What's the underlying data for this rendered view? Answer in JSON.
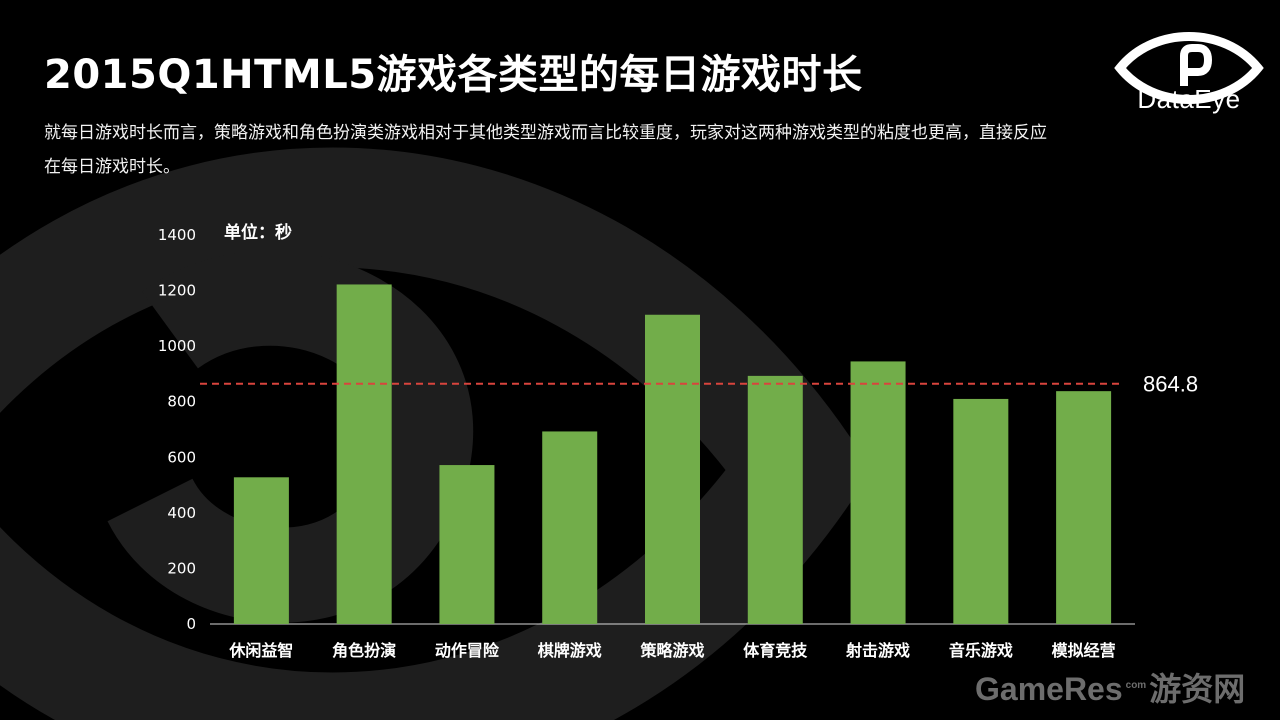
{
  "header": {
    "title": "2015Q1HTML5游戏各类型的每日游戏时长",
    "description": "就每日游戏时长而言，策略游戏和角色扮演类游戏相对于其他类型游戏而言比较重度，玩家对这两种游戏类型的粘度也更高，直接反应在每日游戏时长。"
  },
  "logo": {
    "text": "DataEye"
  },
  "watermark": {
    "main": "GameRes",
    "small": "com",
    "cn": "游资网"
  },
  "chart_data": {
    "type": "bar",
    "title": "",
    "xlabel": "",
    "ylabel": "",
    "unit_label": "单位：秒",
    "categories": [
      "休闲益智",
      "角色扮演",
      "动作冒险",
      "棋牌游戏",
      "策略游戏",
      "体育竞技",
      "射击游戏",
      "音乐游戏",
      "模拟经营"
    ],
    "values": [
      528,
      1222,
      572,
      693,
      1113,
      893,
      945,
      810,
      838
    ],
    "ylim": [
      0,
      1400
    ],
    "yticks": [
      0,
      200,
      400,
      600,
      800,
      1000,
      1200,
      1400
    ],
    "average": {
      "value": 864.8,
      "label": "864.8",
      "color": "#d9443d"
    },
    "bar_color": "#72ad4a",
    "grid": false
  }
}
